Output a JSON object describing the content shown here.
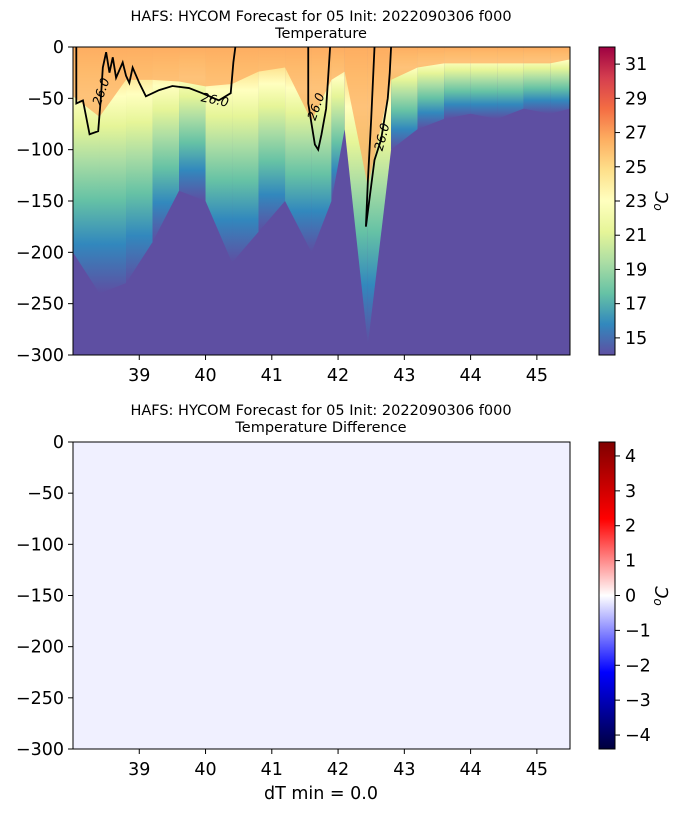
{
  "chart_data": [
    {
      "type": "heatmap",
      "title": "HAFS: HYCOM Forecast for 05 Init: 2022090306 f000",
      "subtitle": "Temperature",
      "x_range": [
        38.0,
        45.5
      ],
      "x_ticks": [
        "39",
        "40",
        "41",
        "42",
        "43",
        "44",
        "45"
      ],
      "y_range": [
        -300,
        0
      ],
      "y_ticks": [
        "0",
        "−50",
        "−100",
        "−150",
        "−200",
        "−250",
        "−300"
      ],
      "colorbar": {
        "range": [
          14,
          32
        ],
        "ticks": [
          "31",
          "29",
          "27",
          "25",
          "23",
          "21",
          "19",
          "17",
          "15"
        ],
        "label": "oC",
        "colors": [
          "#5e4fa2",
          "#3288bd",
          "#66c2a5",
          "#abdda4",
          "#e6f598",
          "#ffffbf",
          "#fee08b",
          "#fdae61",
          "#f46d43",
          "#d53e4f",
          "#9e0142"
        ]
      },
      "contour": {
        "level": 26.0,
        "labels": [
          "26.0",
          "26.0",
          "26.0",
          "26.0"
        ],
        "lines": [
          [
            [
              38.05,
              0
            ],
            [
              38.05,
              -55
            ],
            [
              38.15,
              -52
            ],
            [
              38.25,
              -85
            ],
            [
              38.38,
              -82
            ],
            [
              38.42,
              -50
            ],
            [
              38.45,
              -20
            ],
            [
              38.5,
              -5
            ],
            [
              38.55,
              -25
            ],
            [
              38.6,
              -10
            ],
            [
              38.65,
              -30
            ],
            [
              38.75,
              -15
            ],
            [
              38.8,
              -28
            ],
            [
              38.85,
              -35
            ],
            [
              38.9,
              -20
            ],
            [
              39.0,
              -35
            ],
            [
              39.1,
              -48
            ],
            [
              39.3,
              -42
            ],
            [
              39.5,
              -38
            ],
            [
              39.75,
              -40
            ],
            [
              39.95,
              -45
            ],
            [
              40.2,
              -52
            ],
            [
              40.38,
              -45
            ],
            [
              40.42,
              -15
            ],
            [
              40.45,
              0
            ]
          ],
          [
            [
              41.55,
              0
            ],
            [
              41.55,
              -55
            ],
            [
              41.65,
              -95
            ],
            [
              41.7,
              -100
            ],
            [
              41.75,
              -85
            ],
            [
              41.82,
              -60
            ],
            [
              41.85,
              -30
            ],
            [
              41.88,
              0
            ]
          ],
          [
            [
              42.55,
              0
            ],
            [
              42.5,
              -70
            ],
            [
              42.45,
              -130
            ],
            [
              42.42,
              -175
            ],
            [
              42.45,
              -160
            ],
            [
              42.55,
              -110
            ],
            [
              42.65,
              -90
            ],
            [
              42.75,
              -50
            ],
            [
              42.78,
              -25
            ],
            [
              42.8,
              0
            ]
          ]
        ]
      },
      "field": [
        {
          "x": 38.0,
          "mld": 60,
          "cold": -200
        },
        {
          "x": 38.4,
          "mld": 85,
          "cold": -240
        },
        {
          "x": 38.8,
          "mld": 40,
          "cold": -230
        },
        {
          "x": 39.2,
          "mld": 40,
          "cold": -190
        },
        {
          "x": 39.6,
          "mld": 42,
          "cold": -140
        },
        {
          "x": 40.0,
          "mld": 48,
          "cold": -150
        },
        {
          "x": 40.4,
          "mld": 45,
          "cold": -210
        },
        {
          "x": 40.8,
          "mld": 30,
          "cold": -180
        },
        {
          "x": 41.2,
          "mld": 25,
          "cold": -150
        },
        {
          "x": 41.6,
          "mld": 90,
          "cold": -200
        },
        {
          "x": 41.9,
          "mld": 40,
          "cold": -150
        },
        {
          "x": 42.1,
          "mld": 30,
          "cold": -80
        },
        {
          "x": 42.45,
          "mld": 170,
          "cold": -290
        },
        {
          "x": 42.8,
          "mld": 40,
          "cold": -100
        },
        {
          "x": 43.2,
          "mld": 25,
          "cold": -80
        },
        {
          "x": 43.6,
          "mld": 20,
          "cold": -70
        },
        {
          "x": 44.0,
          "mld": 20,
          "cold": -65
        },
        {
          "x": 44.4,
          "mld": 20,
          "cold": -70
        },
        {
          "x": 44.8,
          "mld": 20,
          "cold": -60
        },
        {
          "x": 45.2,
          "mld": 20,
          "cold": -65
        },
        {
          "x": 45.5,
          "mld": 15,
          "cold": -60
        }
      ]
    },
    {
      "type": "heatmap",
      "title": "HAFS: HYCOM Forecast for 05 Init: 2022090306 f000",
      "subtitle": "Temperature Difference",
      "x_range": [
        38.0,
        45.5
      ],
      "x_ticks": [
        "39",
        "40",
        "41",
        "42",
        "43",
        "44",
        "45"
      ],
      "y_range": [
        -300,
        0
      ],
      "y_ticks": [
        "0",
        "−50",
        "−100",
        "−150",
        "−200",
        "−250",
        "−300"
      ],
      "xlabel": "dT min = 0.0",
      "value": 0.0,
      "fill_color": "#f0f0ff",
      "colorbar": {
        "range": [
          -4.4,
          4.4
        ],
        "ticks": [
          "4",
          "3",
          "2",
          "1",
          "0",
          "−1",
          "−2",
          "−3",
          "−4"
        ],
        "label": "oC",
        "colors": [
          "#00003c",
          "#0000ff",
          "#ffffff",
          "#ff0000",
          "#800000"
        ]
      }
    }
  ]
}
